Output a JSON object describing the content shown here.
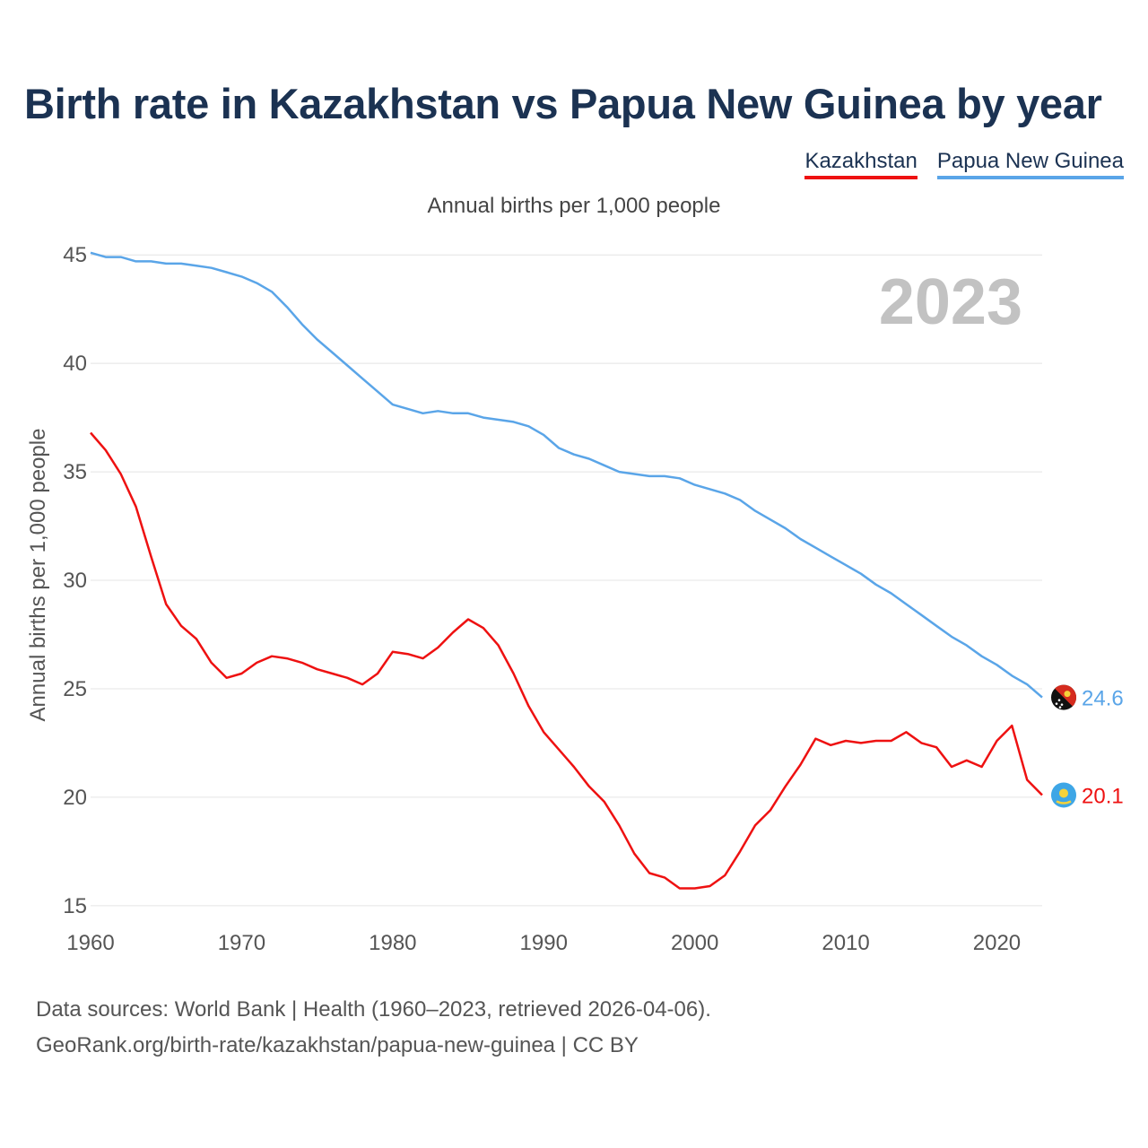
{
  "header": {
    "title": "Birth rate in Kazakhstan vs Papua New Guinea by year",
    "subtitle": "Annual births per 1,000 people"
  },
  "legend": [
    {
      "label": "Kazakhstan",
      "color": "#ee1111"
    },
    {
      "label": "Papua New Guinea",
      "color": "#5aa5e8"
    }
  ],
  "footer": {
    "line1": "Data sources: World Bank | Health (1960–2023, retrieved 2026-04-06).",
    "line2": "GeoRank.org/birth-rate/kazakhstan/papua-new-guinea | CC BY"
  },
  "chart_data": {
    "type": "line",
    "title": "Birth rate in Kazakhstan vs Papua New Guinea by year",
    "ylabel": "Annual births per 1,000 people",
    "xlabel": "",
    "year_label": "2023",
    "x": [
      1960,
      1961,
      1962,
      1963,
      1964,
      1965,
      1966,
      1967,
      1968,
      1969,
      1970,
      1971,
      1972,
      1973,
      1974,
      1975,
      1976,
      1977,
      1978,
      1979,
      1980,
      1981,
      1982,
      1983,
      1984,
      1985,
      1986,
      1987,
      1988,
      1989,
      1990,
      1991,
      1992,
      1993,
      1994,
      1995,
      1996,
      1997,
      1998,
      1999,
      2000,
      2001,
      2002,
      2003,
      2004,
      2005,
      2006,
      2007,
      2008,
      2009,
      2010,
      2011,
      2012,
      2013,
      2014,
      2015,
      2016,
      2017,
      2018,
      2019,
      2020,
      2021,
      2022,
      2023
    ],
    "xlim": [
      1960,
      2023
    ],
    "ylim": [
      14,
      46
    ],
    "xticks": [
      1960,
      1970,
      1980,
      1990,
      2000,
      2010,
      2020
    ],
    "yticks": [
      15,
      20,
      25,
      30,
      35,
      40,
      45
    ],
    "series": [
      {
        "name": "Kazakhstan",
        "color": "#ee1111",
        "end_value": "20.1",
        "flag": "kazakhstan-flag",
        "values": [
          36.8,
          36.0,
          34.9,
          33.4,
          31.1,
          28.9,
          27.9,
          27.3,
          26.2,
          25.5,
          25.7,
          26.2,
          26.5,
          26.4,
          26.2,
          25.9,
          25.7,
          25.5,
          25.2,
          25.7,
          26.7,
          26.6,
          26.4,
          26.9,
          27.6,
          28.2,
          27.8,
          27.0,
          25.7,
          24.2,
          23.0,
          22.2,
          21.4,
          20.5,
          19.8,
          18.7,
          17.4,
          16.5,
          16.3,
          15.8,
          15.8,
          15.9,
          16.4,
          17.5,
          18.7,
          19.4,
          20.5,
          21.5,
          22.7,
          22.4,
          22.6,
          22.5,
          22.6,
          22.6,
          23.0,
          22.5,
          22.3,
          21.4,
          21.7,
          21.4,
          22.6,
          23.3,
          20.8,
          20.1
        ]
      },
      {
        "name": "Papua New Guinea",
        "color": "#5aa5e8",
        "end_value": "24.6",
        "flag": "papua-new-guinea-flag",
        "values": [
          45.1,
          44.9,
          44.9,
          44.7,
          44.7,
          44.6,
          44.6,
          44.5,
          44.4,
          44.2,
          44.0,
          43.7,
          43.3,
          42.6,
          41.8,
          41.1,
          40.5,
          39.9,
          39.3,
          38.7,
          38.1,
          37.9,
          37.7,
          37.8,
          37.7,
          37.7,
          37.5,
          37.4,
          37.3,
          37.1,
          36.7,
          36.1,
          35.8,
          35.6,
          35.3,
          35.0,
          34.9,
          34.8,
          34.8,
          34.7,
          34.4,
          34.2,
          34.0,
          33.7,
          33.2,
          32.8,
          32.4,
          31.9,
          31.5,
          31.1,
          30.7,
          30.3,
          29.8,
          29.4,
          28.9,
          28.4,
          27.9,
          27.4,
          27.0,
          26.5,
          26.1,
          25.6,
          25.2,
          24.6
        ]
      }
    ]
  }
}
